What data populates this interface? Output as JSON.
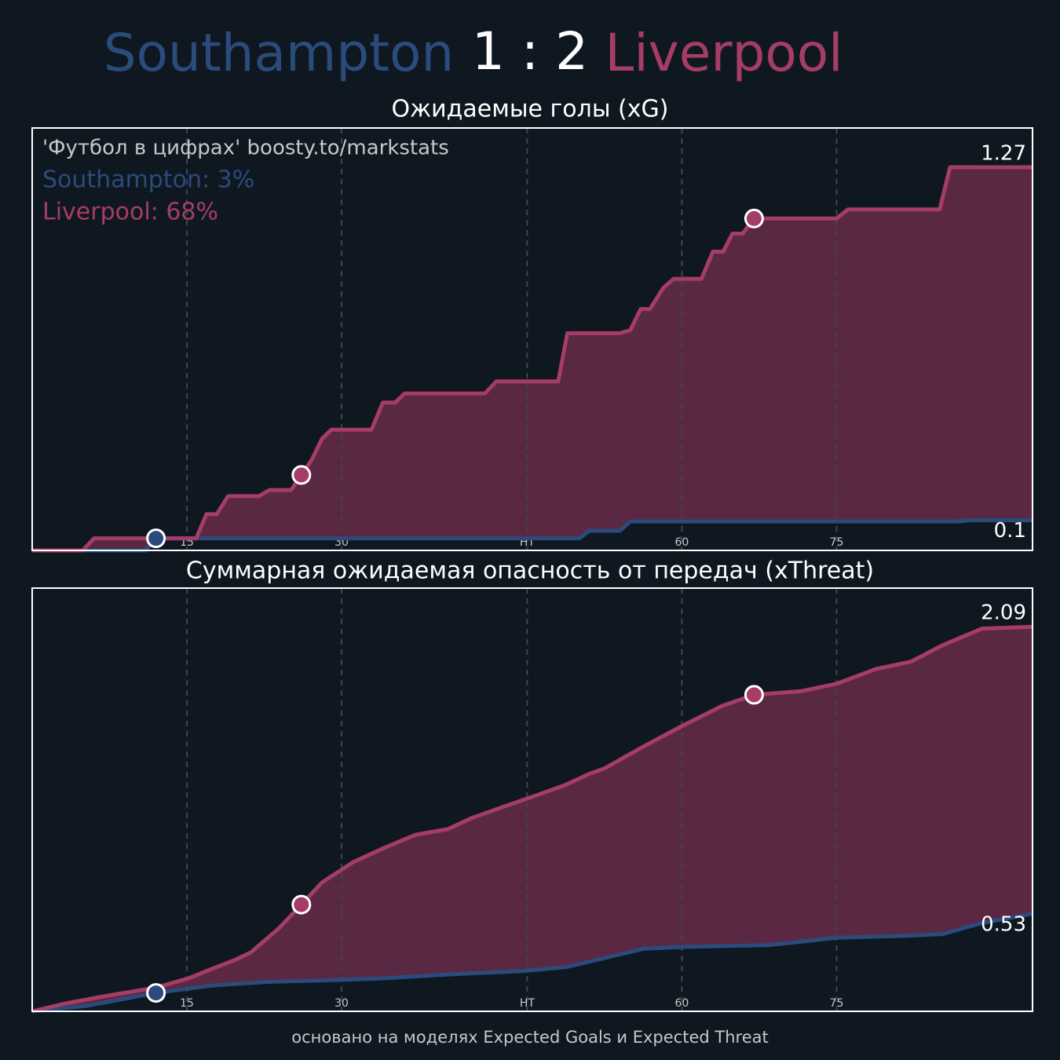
{
  "header": {
    "home": "Southampton",
    "score": "1 : 2",
    "away": "Liverpool"
  },
  "footer": "основано на моделях Expected Goals и Expected Threat",
  "chart_data": [
    {
      "type": "line",
      "title": "Ожидаемые голы (xG)",
      "annotations": [
        "'Футбол в цифрах' boosty.to/markstats",
        "Southampton: 3%",
        "Liverpool: 68%"
      ],
      "xlim": [
        0,
        97
      ],
      "xticks": [
        15,
        30,
        {
          "value": 48,
          "label": "HT"
        },
        {
          "value": 63,
          "label": "60"
        },
        {
          "value": 78,
          "label": "75"
        }
      ],
      "ylim": [
        0,
        1.4
      ],
      "grid": true,
      "fill": "#5a2843",
      "series": [
        {
          "color": "#2a4b7c",
          "goals": [
            12
          ],
          "x": [
            0,
            11,
            12,
            53.1,
            54,
            57,
            58,
            89.9,
            90.9,
            97
          ],
          "values": [
            0,
            0,
            0.04,
            0.04,
            0.065,
            0.065,
            0.096,
            0.096,
            0.1,
            0.1
          ]
        },
        {
          "color": "#a53d66",
          "goals": [
            26.1,
            70
          ],
          "x": [
            0,
            4.9,
            6,
            15.9,
            16.9,
            17.9,
            19,
            22,
            23,
            25.1,
            26.1,
            27.1,
            28.1,
            29,
            32.9,
            34,
            35.2,
            36.1,
            43.9,
            45,
            51,
            51.9,
            57,
            58,
            59,
            59.9,
            61.2,
            62.2,
            64.9,
            66,
            67,
            67.9,
            68.9,
            70,
            78,
            79.1,
            88,
            89,
            97
          ],
          "values": [
            0,
            0,
            0.04,
            0.04,
            0.12,
            0.12,
            0.18,
            0.18,
            0.2,
            0.2,
            0.25,
            0.3,
            0.37,
            0.4,
            0.4,
            0.49,
            0.49,
            0.52,
            0.52,
            0.56,
            0.56,
            0.72,
            0.72,
            0.73,
            0.8,
            0.8,
            0.87,
            0.9,
            0.9,
            0.99,
            0.99,
            1.05,
            1.05,
            1.1,
            1.1,
            1.13,
            1.13,
            1.27,
            1.27
          ]
        }
      ]
    },
    {
      "type": "line",
      "title": "Суммарная ожидаемая опасность от передач (xThreat)",
      "xlim": [
        0,
        97
      ],
      "xticks": [
        15,
        30,
        {
          "value": 48,
          "label": "HT"
        },
        {
          "value": 63,
          "label": "60"
        },
        {
          "value": 78,
          "label": "75"
        }
      ],
      "ylim": [
        0,
        2.3
      ],
      "grid": true,
      "fill": "#5a2843",
      "series": [
        {
          "color": "#2a4b7c",
          "goals": [
            12
          ],
          "x": [
            0,
            5.3,
            12,
            17.4,
            22.8,
            29.6,
            34.2,
            40.3,
            47.9,
            51.7,
            54.8,
            59.3,
            63.1,
            71.5,
            78,
            84.5,
            88.3,
            92.1,
            97
          ],
          "values": [
            0,
            0.03,
            0.1,
            0.14,
            0.16,
            0.17,
            0.18,
            0.2,
            0.22,
            0.24,
            0.28,
            0.34,
            0.35,
            0.36,
            0.4,
            0.41,
            0.42,
            0.48,
            0.53
          ]
        },
        {
          "color": "#a53d66",
          "goals": [
            26.1,
            70
          ],
          "x": [
            0,
            3,
            6.8,
            12.1,
            15.2,
            17.4,
            19.7,
            21.2,
            23.9,
            26.1,
            28.1,
            31.1,
            34.2,
            37.2,
            40.3,
            42.6,
            45.6,
            48.7,
            51.7,
            54,
            55.5,
            59.3,
            63,
            66.9,
            70,
            74.6,
            78,
            81.8,
            85.2,
            88.3,
            92.1,
            97
          ],
          "values": [
            0,
            0.04,
            0.08,
            0.13,
            0.18,
            0.23,
            0.28,
            0.32,
            0.45,
            0.58,
            0.7,
            0.81,
            0.89,
            0.96,
            0.99,
            1.05,
            1.11,
            1.17,
            1.23,
            1.29,
            1.32,
            1.44,
            1.55,
            1.66,
            1.72,
            1.74,
            1.78,
            1.86,
            1.9,
            1.99,
            2.08,
            2.09
          ]
        }
      ]
    }
  ]
}
